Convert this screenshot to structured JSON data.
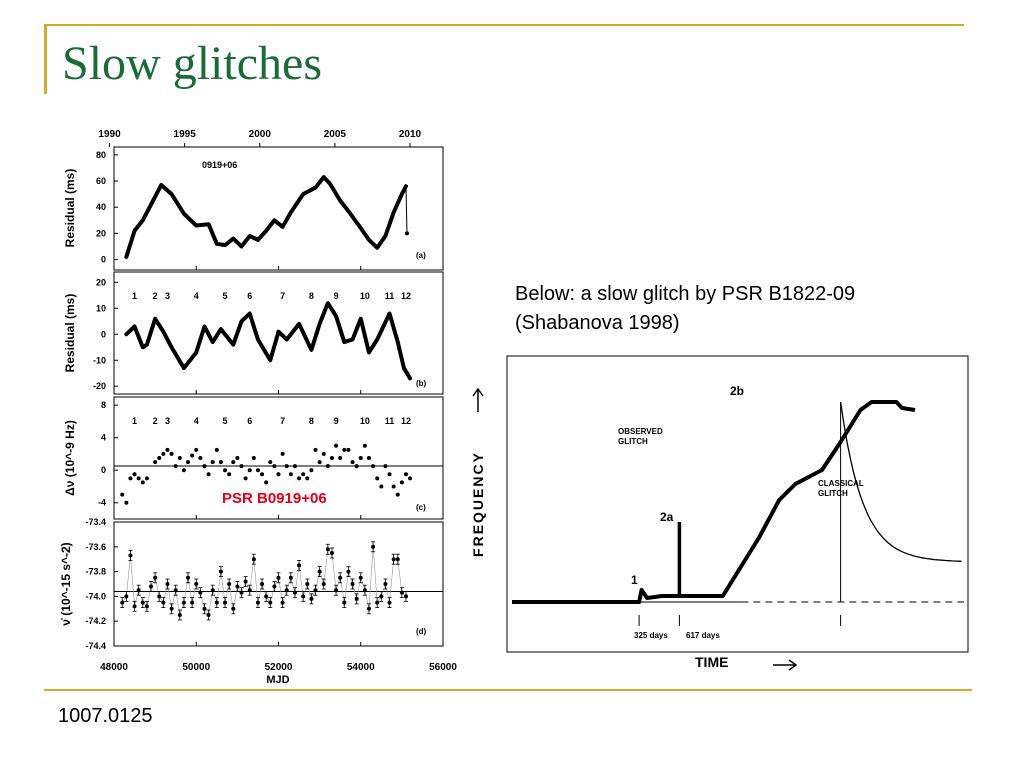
{
  "slide": {
    "title": "Slow glitches",
    "footer": "1007.0125",
    "caption_line1": "Below: a slow glitch by PSR B1822-09",
    "caption_line2": "(Shabanova 1998)",
    "accent_color": "#d9a72a",
    "title_color": "#1b6b3a",
    "label_color": "#e2001a"
  },
  "chart_data": [
    {
      "type": "line",
      "panel": "(a)",
      "annotation": "0919+06",
      "ylabel": "Residual (ms)",
      "top_axis_ticks": [
        "1990",
        "1995",
        "2000",
        "2005",
        "2010"
      ],
      "top_axis_years": [
        1990,
        1995,
        2000,
        2005,
        2010
      ],
      "ylim": [
        -8,
        86
      ],
      "yticks": [
        0,
        20,
        40,
        60,
        80
      ],
      "x": [
        48300,
        48500,
        48700,
        49000,
        49150,
        49400,
        49700,
        50000,
        50300,
        50500,
        50700,
        50900,
        51100,
        51300,
        51500,
        51700,
        51900,
        52100,
        52300,
        52600,
        52900,
        53100,
        53250,
        53500,
        53700,
        54000,
        54200,
        54400,
        54600,
        54800,
        55000,
        55100
      ],
      "y": [
        2,
        22,
        30,
        48,
        57,
        50,
        35,
        26,
        27,
        12,
        11,
        16,
        10,
        18,
        15,
        22,
        30,
        25,
        36,
        50,
        55,
        63,
        58,
        45,
        37,
        24,
        15,
        9,
        18,
        36,
        50,
        56
      ]
    },
    {
      "type": "line",
      "panel": "(b)",
      "ylabel": "Residual (ms)",
      "ylim": [
        -23,
        24
      ],
      "yticks": [
        -20,
        -10,
        0,
        10,
        20
      ],
      "glitch_labels": [
        "1",
        "2",
        "3",
        "4",
        "5",
        "6",
        "7",
        "8",
        "9",
        "10",
        "11",
        "12"
      ],
      "glitch_mjd": [
        48500,
        49000,
        49300,
        50000,
        50700,
        51300,
        52100,
        52800,
        53400,
        54100,
        54700,
        55100
      ],
      "x": [
        48300,
        48500,
        48700,
        48800,
        49000,
        49200,
        49400,
        49700,
        50000,
        50200,
        50400,
        50600,
        50900,
        51100,
        51300,
        51500,
        51800,
        52000,
        52200,
        52500,
        52800,
        53000,
        53200,
        53400,
        53600,
        53800,
        54000,
        54200,
        54400,
        54700,
        54900,
        55050,
        55200
      ],
      "y": [
        0,
        3,
        -5,
        -4,
        6,
        1,
        -5,
        -13,
        -7,
        3,
        -3,
        2,
        -4,
        5,
        8,
        -2,
        -10,
        1,
        -2,
        4,
        -6,
        4,
        12,
        7,
        -3,
        -2,
        6,
        -7,
        -2,
        8,
        -3,
        -13,
        -17
      ]
    },
    {
      "type": "scatter",
      "panel": "(c)",
      "ylabel": "Δν (10^-9 Hz)",
      "ylim": [
        -6,
        9
      ],
      "yticks": [
        -4,
        0,
        4,
        8
      ],
      "annotation": "PSR B0919+06",
      "glitch_labels": [
        "1",
        "2",
        "3",
        "4",
        "5",
        "6",
        "7",
        "8",
        "9",
        "10",
        "11",
        "12"
      ],
      "glitch_mjd": [
        48500,
        49000,
        49300,
        50000,
        50700,
        51300,
        52100,
        52800,
        53400,
        54100,
        54700,
        55100
      ],
      "x": [
        48200,
        48300,
        48400,
        48500,
        48600,
        48700,
        48800,
        49000,
        49100,
        49200,
        49300,
        49400,
        49500,
        49600,
        49700,
        49800,
        49900,
        50000,
        50100,
        50200,
        50300,
        50400,
        50500,
        50600,
        50700,
        50800,
        50900,
        51000,
        51100,
        51200,
        51300,
        51400,
        51500,
        51600,
        51700,
        51800,
        51900,
        52000,
        52100,
        52200,
        52300,
        52400,
        52500,
        52600,
        52700,
        52800,
        52900,
        53000,
        53100,
        53200,
        53300,
        53400,
        53500,
        53600,
        53700,
        53800,
        53900,
        54000,
        54100,
        54200,
        54300,
        54400,
        54500,
        54600,
        54700,
        54800,
        54900,
        55000,
        55100,
        55200
      ],
      "y": [
        -3,
        -4,
        -1,
        -0.5,
        -1,
        -1.5,
        -1,
        1,
        1.5,
        2,
        2.5,
        2,
        0.5,
        1.5,
        0,
        1,
        1.8,
        2.5,
        1.5,
        0.5,
        -0.5,
        1,
        2.5,
        1,
        0,
        -0.5,
        1,
        1.5,
        0.5,
        -1,
        0,
        1.5,
        0,
        -0.5,
        -1.5,
        1,
        0.5,
        -0.5,
        2,
        0.5,
        -0.5,
        0.5,
        -1,
        -0.5,
        -1,
        0,
        2.5,
        1,
        2,
        0.5,
        1.5,
        3,
        1.5,
        2.5,
        2.5,
        1,
        0.5,
        1.5,
        3,
        1.5,
        0.5,
        -1,
        -2,
        0.5,
        -0.5,
        -2,
        -3,
        -1.5,
        -0.5,
        -1
      ]
    },
    {
      "type": "scatter",
      "panel": "(d)",
      "ylabel": "ν̇ (10^-15 s^-2)",
      "xlabel": "MJD",
      "xlim": [
        48000,
        56000
      ],
      "xticks": [
        48000,
        50000,
        52000,
        54000,
        56000
      ],
      "ylim": [
        -74.4,
        -73.4
      ],
      "yticks": [
        -73.4,
        -73.6,
        -73.8,
        -74.0,
        -74.2,
        -74.4
      ],
      "ytick_labels": [
        "-73.4",
        "-73.6",
        "-73.8",
        "-74.0",
        "-74.2",
        "-74.4"
      ],
      "baseline": -73.96,
      "x": [
        48200,
        48300,
        48400,
        48500,
        48600,
        48700,
        48800,
        48900,
        49000,
        49100,
        49200,
        49300,
        49400,
        49500,
        49600,
        49700,
        49800,
        49900,
        50000,
        50100,
        50200,
        50300,
        50400,
        50500,
        50600,
        50700,
        50800,
        50900,
        51000,
        51100,
        51200,
        51300,
        51400,
        51500,
        51600,
        51700,
        51800,
        51900,
        52000,
        52100,
        52200,
        52300,
        52400,
        52500,
        52600,
        52700,
        52800,
        52900,
        53000,
        53100,
        53200,
        53300,
        53400,
        53500,
        53600,
        53700,
        53800,
        53900,
        54000,
        54100,
        54200,
        54300,
        54400,
        54500,
        54600,
        54700,
        54800,
        54900,
        55000,
        55100
      ],
      "y": [
        -74.05,
        -74,
        -73.67,
        -74.08,
        -73.95,
        -74.05,
        -74.08,
        -73.92,
        -73.85,
        -74,
        -74.05,
        -73.9,
        -74.1,
        -73.95,
        -74.15,
        -74.05,
        -73.85,
        -74.05,
        -73.9,
        -73.97,
        -74.1,
        -74.15,
        -73.95,
        -74.05,
        -73.8,
        -74.05,
        -73.9,
        -74.1,
        -73.92,
        -73.97,
        -73.88,
        -73.95,
        -73.7,
        -74.05,
        -73.9,
        -74,
        -74.05,
        -73.92,
        -73.85,
        -74.05,
        -73.95,
        -73.85,
        -73.97,
        -73.75,
        -74,
        -73.9,
        -74.02,
        -73.95,
        -73.8,
        -73.9,
        -73.62,
        -73.65,
        -73.95,
        -73.85,
        -74.05,
        -73.8,
        -73.9,
        -74.02,
        -73.85,
        -73.95,
        -74.1,
        -73.6,
        -74.05,
        -74,
        -73.9,
        -74.05,
        -73.7,
        -73.7,
        -73.97,
        -74
      ]
    },
    {
      "type": "line",
      "title": "",
      "xlabel": "TIME",
      "ylabel": "FREQUENCY",
      "labels": {
        "observed": "OBSERVED GLITCH",
        "classical": "CLASSICAL GLITCH",
        "point1": "1",
        "point2a": "2a",
        "point2b": "2b",
        "interval1": "325 days",
        "interval2": "617 days"
      },
      "x_days": [
        0,
        205,
        209,
        218,
        242,
        270,
        295,
        315,
        340,
        398,
        431,
        457,
        500,
        530,
        562,
        580,
        620,
        629,
        650
      ],
      "observed_freq": [
        0,
        0,
        0.06,
        0.02,
        0.03,
        0.03,
        0.03,
        0.03,
        0.03,
        0.32,
        0.51,
        0.59,
        0.66,
        0.8,
        0.96,
        1.0,
        1.0,
        0.97,
        0.96
      ],
      "classical_decay": {
        "start_days": 530,
        "start_freq": 1.0,
        "end_days": 731,
        "end_freq": 0.2
      },
      "axis_markers": {
        "glitch1_days": 205,
        "glitch2_days": 530
      }
    }
  ]
}
